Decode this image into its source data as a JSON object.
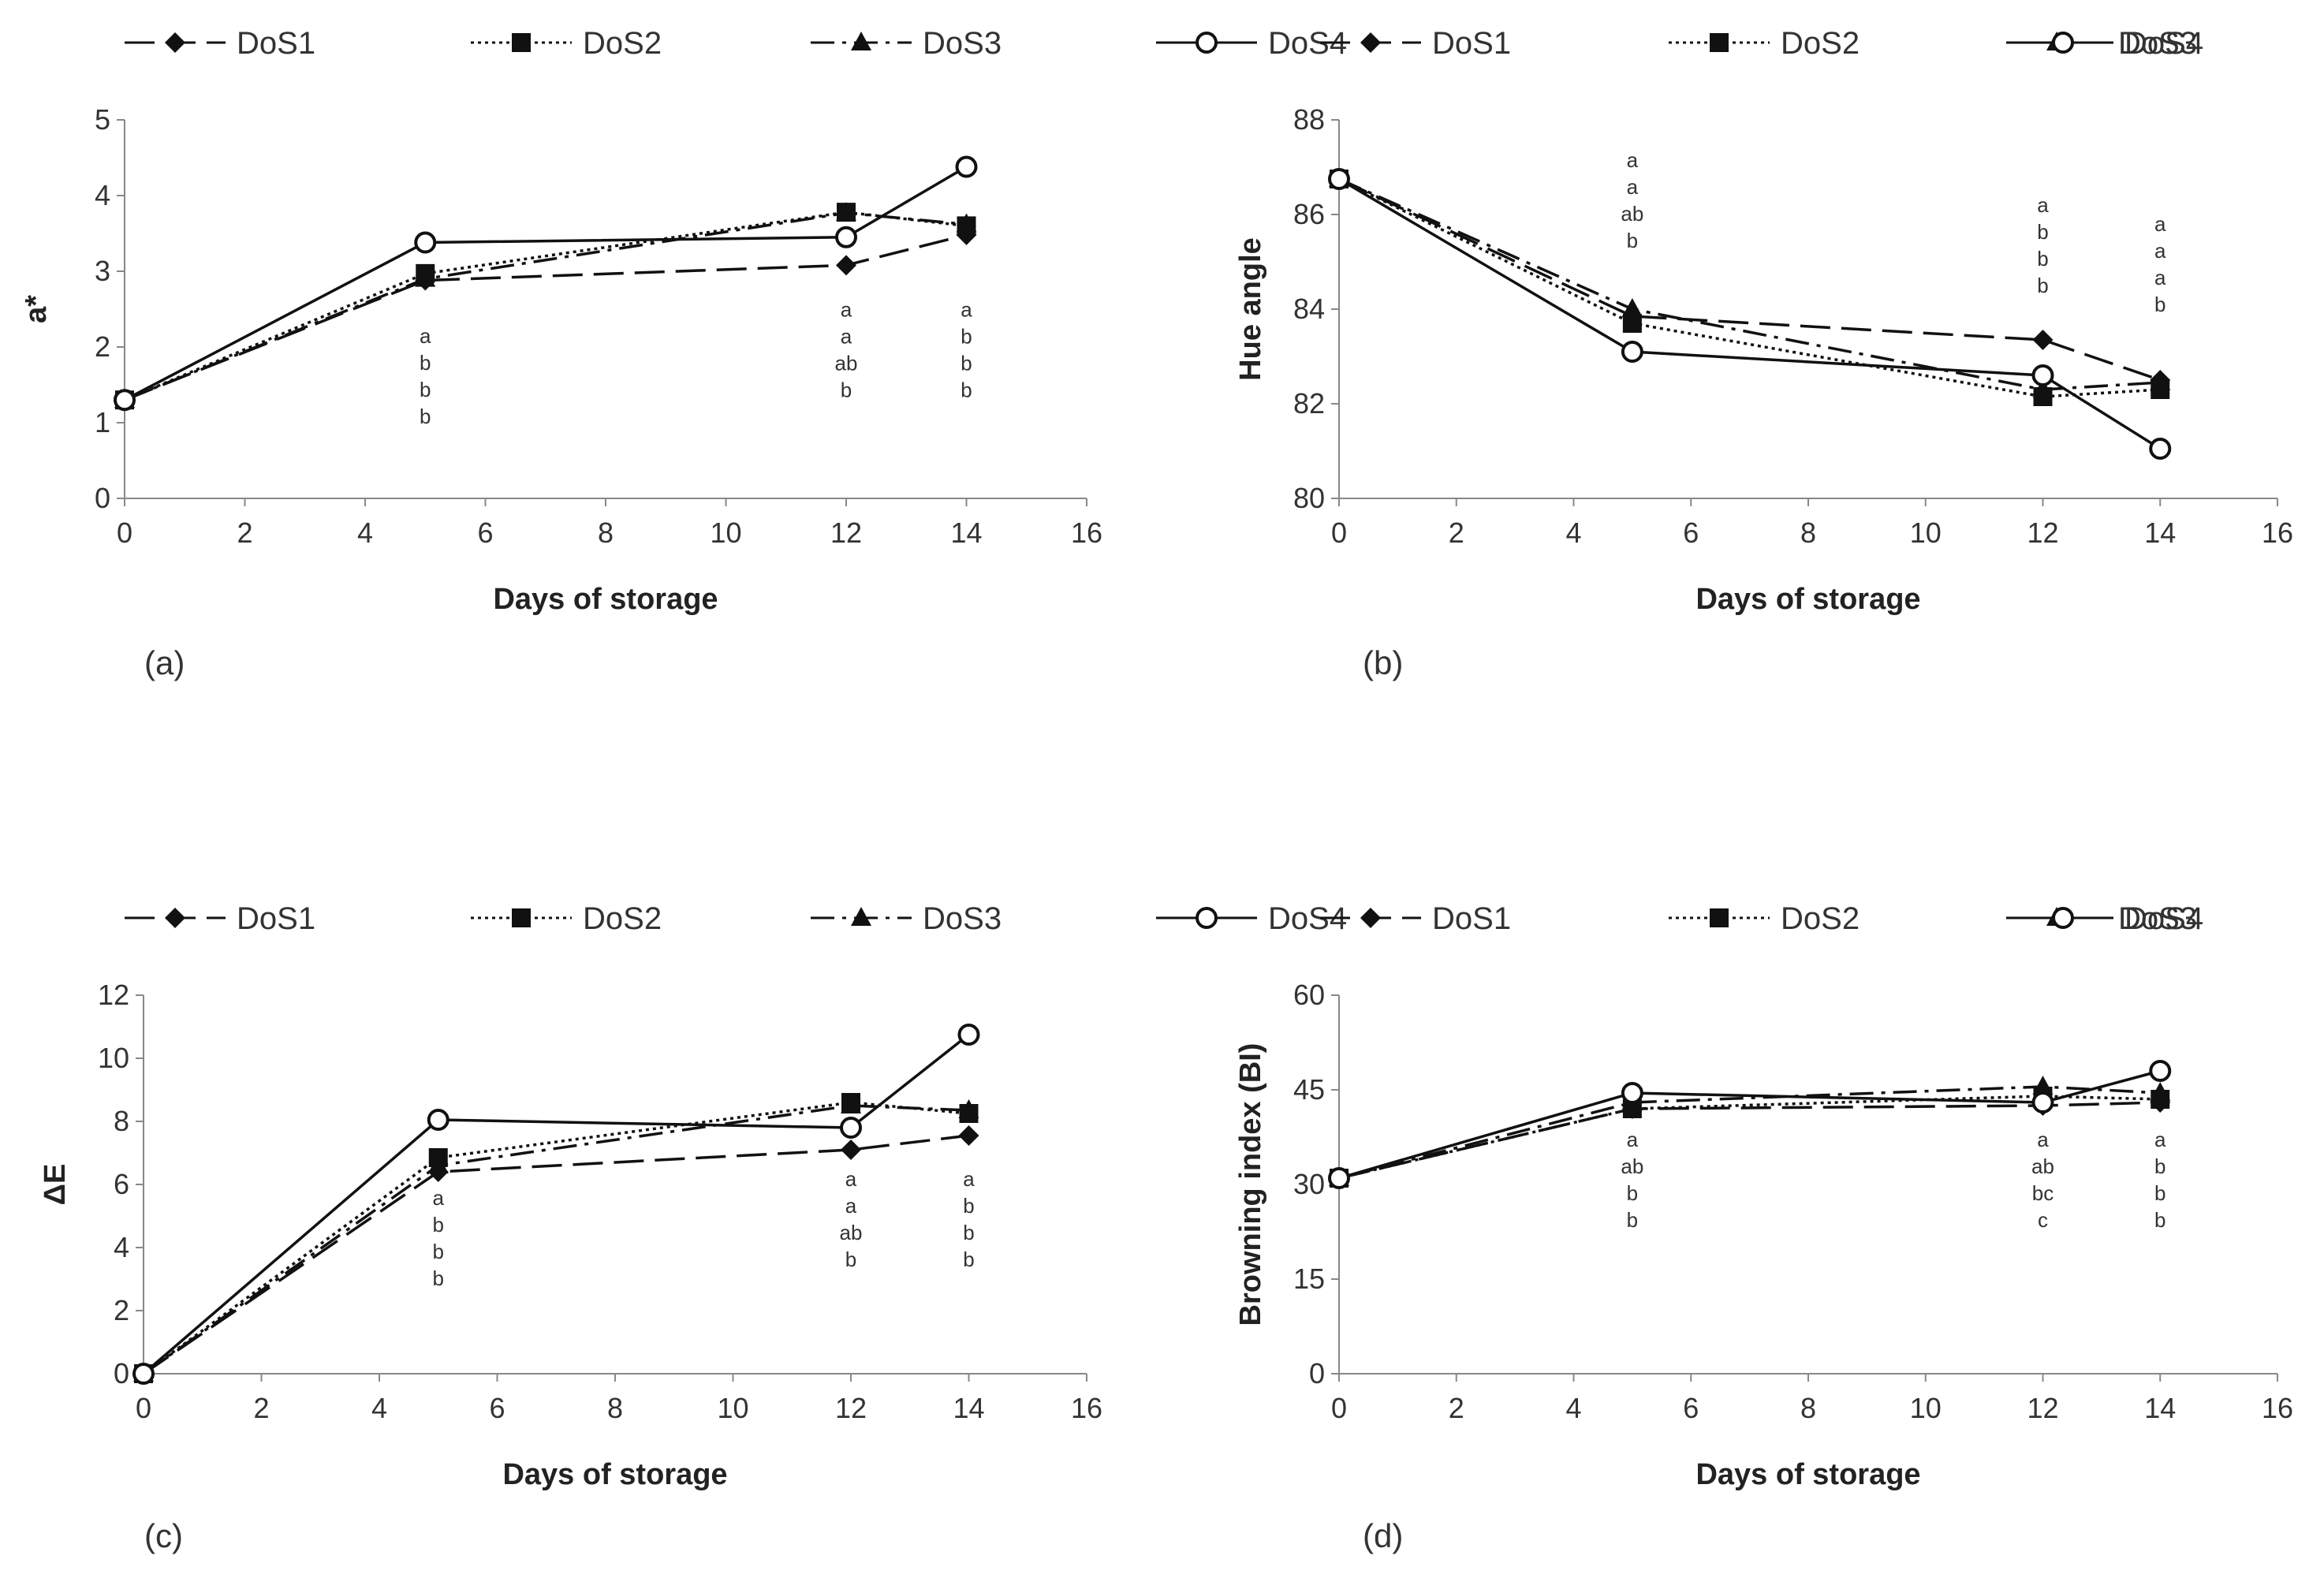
{
  "legend": [
    "DoS1",
    "DoS2",
    "DoS3",
    "DoS4"
  ],
  "chart_data": [
    {
      "type": "line",
      "panel_label": "(a)",
      "xlabel": "Days of storage",
      "ylabel": "a*",
      "xlim": [
        0,
        16
      ],
      "ylim": [
        0,
        5
      ],
      "xticks": [
        0,
        2,
        4,
        6,
        8,
        10,
        12,
        14,
        16
      ],
      "yticks": [
        0,
        1,
        2,
        3,
        4,
        5
      ],
      "x": [
        0,
        5,
        12,
        14
      ],
      "series": [
        {
          "name": "DoS1",
          "values": [
            1.3,
            2.88,
            3.08,
            3.48
          ]
        },
        {
          "name": "DoS2",
          "values": [
            1.3,
            2.97,
            3.78,
            3.6
          ]
        },
        {
          "name": "DoS3",
          "values": [
            1.3,
            2.9,
            3.77,
            3.62
          ]
        },
        {
          "name": "DoS4",
          "values": [
            1.3,
            3.38,
            3.45,
            4.38
          ]
        }
      ],
      "annotations": [
        {
          "x": 5,
          "y": 2.05,
          "text": [
            "a",
            "b",
            "b",
            "b"
          ]
        },
        {
          "x": 12,
          "y": 2.4,
          "text": [
            "a",
            "a",
            "ab",
            "b"
          ]
        },
        {
          "x": 14,
          "y": 2.4,
          "text": [
            "a",
            "b",
            "b",
            "b"
          ]
        }
      ]
    },
    {
      "type": "line",
      "panel_label": "(b)",
      "xlabel": "Days of storage",
      "ylabel": "Hue angle",
      "xlim": [
        0,
        16
      ],
      "ylim": [
        80,
        88
      ],
      "xticks": [
        0,
        2,
        4,
        6,
        8,
        10,
        12,
        14,
        16
      ],
      "yticks": [
        80,
        82,
        84,
        86,
        88
      ],
      "x": [
        0,
        5,
        12,
        14
      ],
      "series": [
        {
          "name": "DoS1",
          "values": [
            86.75,
            83.85,
            83.35,
            82.5
          ]
        },
        {
          "name": "DoS2",
          "values": [
            86.75,
            83.7,
            82.15,
            82.3
          ]
        },
        {
          "name": "DoS3",
          "values": [
            86.75,
            84.0,
            82.3,
            82.45
          ]
        },
        {
          "name": "DoS4",
          "values": [
            86.75,
            83.1,
            82.6,
            81.05
          ]
        }
      ],
      "annotations": [
        {
          "x": 5,
          "y": 87.0,
          "text": [
            "a",
            "a",
            "ab",
            "b"
          ]
        },
        {
          "x": 12,
          "y": 86.05,
          "text": [
            "a",
            "b",
            "b",
            "b"
          ]
        },
        {
          "x": 14,
          "y": 85.65,
          "text": [
            "a",
            "a",
            "a",
            "b"
          ]
        }
      ]
    },
    {
      "type": "line",
      "panel_label": "(c)",
      "xlabel": "Days of storage",
      "ylabel": "ΔE",
      "xlim": [
        0,
        16
      ],
      "ylim": [
        0,
        12
      ],
      "xticks": [
        0,
        2,
        4,
        6,
        8,
        10,
        12,
        14,
        16
      ],
      "yticks": [
        0,
        2,
        4,
        6,
        8,
        10,
        12
      ],
      "x": [
        0,
        5,
        12,
        14
      ],
      "series": [
        {
          "name": "DoS1",
          "values": [
            0,
            6.4,
            7.1,
            7.55
          ]
        },
        {
          "name": "DoS2",
          "values": [
            0,
            6.85,
            8.6,
            8.25
          ]
        },
        {
          "name": "DoS3",
          "values": [
            0,
            6.6,
            8.5,
            8.35
          ]
        },
        {
          "name": "DoS4",
          "values": [
            0,
            8.05,
            7.8,
            10.75
          ]
        }
      ],
      "annotations": [
        {
          "x": 5,
          "y": 5.35,
          "text": [
            "a",
            "b",
            "b",
            "b"
          ]
        },
        {
          "x": 12,
          "y": 5.95,
          "text": [
            "a",
            "a",
            "ab",
            "b"
          ]
        },
        {
          "x": 14,
          "y": 5.95,
          "text": [
            "a",
            "b",
            "b",
            "b"
          ]
        }
      ]
    },
    {
      "type": "line",
      "panel_label": "(d)",
      "xlabel": "Days of storage",
      "ylabel": "Browning index (BI)",
      "xlim": [
        0,
        16
      ],
      "ylim": [
        0,
        60
      ],
      "xticks": [
        0,
        2,
        4,
        6,
        8,
        10,
        12,
        14,
        16
      ],
      "yticks": [
        0,
        15,
        30,
        45,
        60
      ],
      "x": [
        0,
        5,
        12,
        14
      ],
      "series": [
        {
          "name": "DoS1",
          "values": [
            31,
            42,
            42.5,
            43
          ]
        },
        {
          "name": "DoS2",
          "values": [
            31,
            42,
            44,
            43.5
          ]
        },
        {
          "name": "DoS3",
          "values": [
            31,
            43,
            45.5,
            44.5
          ]
        },
        {
          "name": "DoS4",
          "values": [
            31,
            44.5,
            43,
            48
          ]
        }
      ],
      "annotations": [
        {
          "x": 5,
          "y": 36.0,
          "text": [
            "a",
            "ab",
            "b",
            "b"
          ]
        },
        {
          "x": 12,
          "y": 36.0,
          "text": [
            "a",
            "ab",
            "bc",
            "c"
          ]
        },
        {
          "x": 14,
          "y": 36.0,
          "text": [
            "a",
            "b",
            "b",
            "b"
          ]
        }
      ]
    }
  ]
}
